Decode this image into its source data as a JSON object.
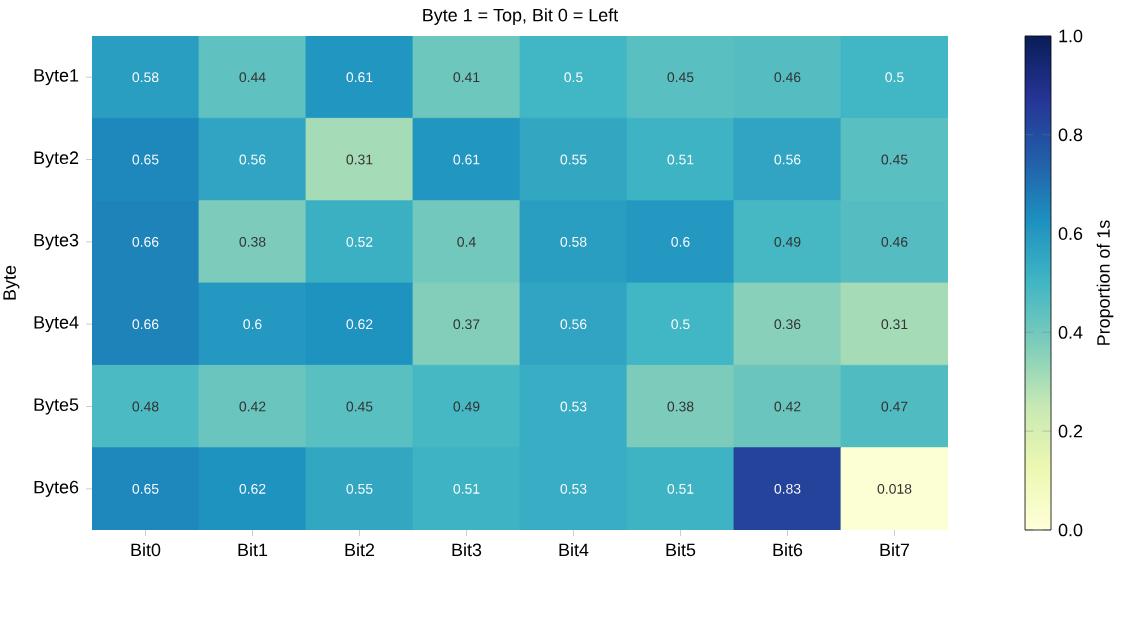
{
  "chart_data": {
    "type": "heatmap",
    "title": "Byte 1 = Top, Bit 0 = Left",
    "ylabel": "Byte",
    "clabel": "Proportion of 1s",
    "categories": [
      "Bit0",
      "Bit1",
      "Bit2",
      "Bit3",
      "Bit4",
      "Bit5",
      "Bit6",
      "Bit7"
    ],
    "y_categories": [
      "Byte1",
      "Byte2",
      "Byte3",
      "Byte4",
      "Byte5",
      "Byte6"
    ],
    "cells": [
      [
        0.58,
        0.44,
        0.61,
        0.41,
        0.5,
        0.45,
        0.46,
        0.5
      ],
      [
        0.65,
        0.56,
        0.31,
        0.61,
        0.55,
        0.51,
        0.56,
        0.45
      ],
      [
        0.66,
        0.38,
        0.52,
        0.4,
        0.58,
        0.6,
        0.49,
        0.46
      ],
      [
        0.66,
        0.6,
        0.62,
        0.37,
        0.56,
        0.5,
        0.36,
        0.31
      ],
      [
        0.48,
        0.42,
        0.45,
        0.49,
        0.53,
        0.38,
        0.42,
        0.47
      ],
      [
        0.65,
        0.62,
        0.55,
        0.51,
        0.53,
        0.51,
        0.83,
        0.018
      ]
    ],
    "clim": [
      0,
      1
    ],
    "data_labels": true,
    "cticks": [
      {
        "value": 0,
        "label": "0.0"
      },
      {
        "value": 0.2,
        "label": "0.2"
      },
      {
        "value": 0.4,
        "label": "0.4"
      },
      {
        "value": 0.6,
        "label": "0.6"
      },
      {
        "value": 0.8,
        "label": "0.8"
      },
      {
        "value": 1,
        "label": "1.0"
      }
    ]
  }
}
